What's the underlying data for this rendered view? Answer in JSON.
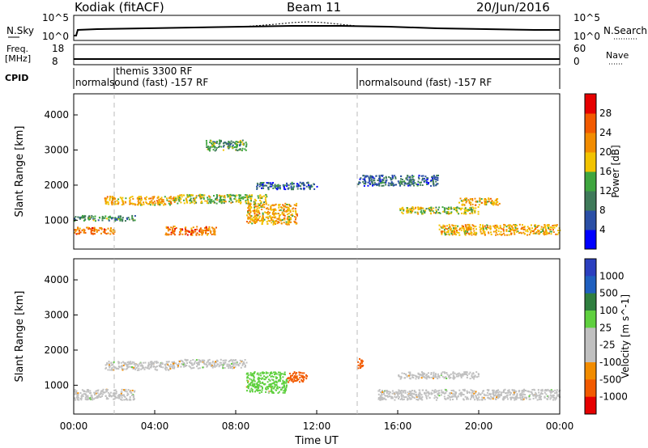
{
  "header": {
    "station": "Kodiak (fitACF)",
    "beam": "Beam 11",
    "date": "20/Jun/2016"
  },
  "top_panels": {
    "nsky_label": "N.Sky",
    "nsky_ticks": [
      "10^5",
      "10^0"
    ],
    "nsearch_label": "N.Search",
    "nsearch_ticks": [
      "10^5",
      "10^0"
    ],
    "freq_label_1": "Freq.",
    "freq_label_2": "[MHz]",
    "freq_ticks": [
      "18",
      "8"
    ],
    "nave_label": "Nave",
    "nave_ticks": [
      "60",
      "0"
    ],
    "cpid_label": "CPID",
    "cpid_segments": [
      "themis 3300 RF",
      "normalsound (fast) -157 RF",
      "normalsound (fast) -157 RF"
    ]
  },
  "colors": {
    "power": [
      "#0000ff",
      "#2b4fa6",
      "#3f7a5a",
      "#3fa63f",
      "#f2c300",
      "#f28c00",
      "#f25a00",
      "#e60000"
    ],
    "velocity": [
      "#2b3fbf",
      "#1f5fbf",
      "#2f7f3f",
      "#5fd03f",
      "#c0c0c0",
      "#c0c0c0",
      "#f28c00",
      "#f25a00",
      "#e60000"
    ]
  },
  "chart_data": [
    {
      "type": "heatmap",
      "panel": "power",
      "ylabel": "Slant Range [km]",
      "ylim": [
        180,
        4600
      ],
      "yticks": [
        "1000",
        "2000",
        "3000",
        "4000"
      ],
      "xlim": [
        0,
        24
      ],
      "colorbar_label": "Power [dB]",
      "colorbar_ticks": [
        "4",
        "8",
        "12",
        "16",
        "20",
        "24",
        "28"
      ],
      "series": [
        {
          "t": [
            0.0,
            2.0
          ],
          "r": [
            620,
            820
          ],
          "v": 24
        },
        {
          "t": [
            0.0,
            3.0
          ],
          "r": [
            1000,
            1150
          ],
          "v": 12
        },
        {
          "t": [
            1.5,
            5.0
          ],
          "r": [
            1450,
            1700
          ],
          "v": 20
        },
        {
          "t": [
            5.0,
            9.5
          ],
          "r": [
            1500,
            1750
          ],
          "v": 16
        },
        {
          "t": [
            4.5,
            7.0
          ],
          "r": [
            600,
            850
          ],
          "v": 24
        },
        {
          "t": [
            8.5,
            11.0
          ],
          "r": [
            900,
            1500
          ],
          "v": 20
        },
        {
          "t": [
            6.5,
            8.5
          ],
          "r": [
            3000,
            3300
          ],
          "v": 12
        },
        {
          "t": [
            9.0,
            12.0
          ],
          "r": [
            1900,
            2100
          ],
          "v": 8
        },
        {
          "t": [
            18.0,
            24.0
          ],
          "r": [
            600,
            900
          ],
          "v": 20
        },
        {
          "t": [
            16.0,
            20.0
          ],
          "r": [
            1200,
            1400
          ],
          "v": 16
        },
        {
          "t": [
            19.0,
            21.0
          ],
          "r": [
            1450,
            1650
          ],
          "v": 20
        },
        {
          "t": [
            14.0,
            18.0
          ],
          "r": [
            2000,
            2300
          ],
          "v": 8
        }
      ]
    },
    {
      "type": "heatmap",
      "panel": "velocity",
      "ylabel": "Slant Range [km]",
      "ylim": [
        180,
        4600
      ],
      "yticks": [
        "1000",
        "2000",
        "3000",
        "4000"
      ],
      "xlim": [
        0,
        24
      ],
      "xlabel": "Time UT",
      "xticks": [
        "00:00",
        "04:00",
        "08:00",
        "12:00",
        "16:00",
        "20:00",
        "00:00"
      ],
      "colorbar_label": "Velocity [m s^-1]",
      "colorbar_ticks": [
        "1000",
        "500",
        "100",
        "25",
        "-25",
        "-100",
        "-500",
        "-1000"
      ],
      "series": [
        {
          "t": [
            0.0,
            3.0
          ],
          "r": [
            600,
            900
          ],
          "v": 0
        },
        {
          "t": [
            1.5,
            5.0
          ],
          "r": [
            1450,
            1700
          ],
          "v": 0
        },
        {
          "t": [
            5.0,
            8.5
          ],
          "r": [
            1500,
            1750
          ],
          "v": 0
        },
        {
          "t": [
            8.5,
            10.5
          ],
          "r": [
            800,
            1400
          ],
          "v": 100
        },
        {
          "t": [
            10.5,
            11.5
          ],
          "r": [
            1100,
            1400
          ],
          "v": -300
        },
        {
          "t": [
            14.0,
            14.3
          ],
          "r": [
            1500,
            1800
          ],
          "v": -300
        },
        {
          "t": [
            15.0,
            24.0
          ],
          "r": [
            600,
            900
          ],
          "v": 0
        },
        {
          "t": [
            16.0,
            20.0
          ],
          "r": [
            1200,
            1400
          ],
          "v": 0
        }
      ]
    }
  ]
}
